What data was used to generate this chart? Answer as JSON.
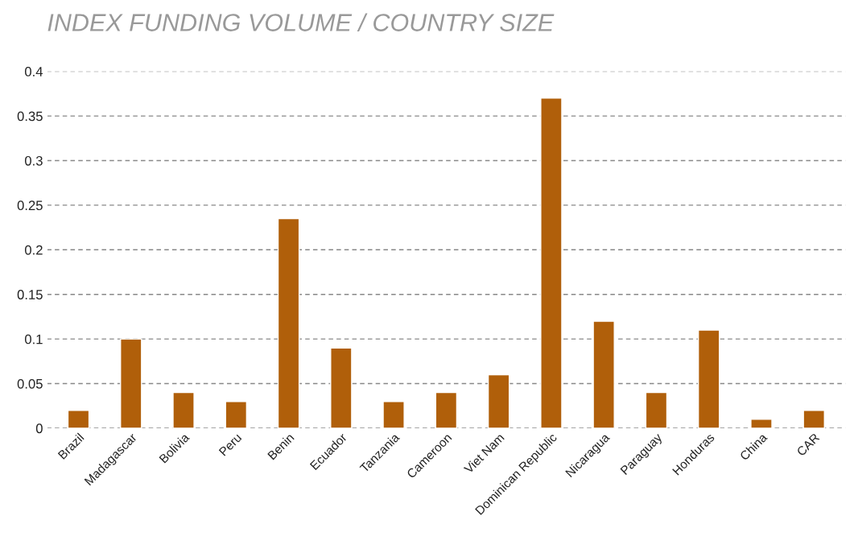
{
  "chart_data": {
    "type": "bar",
    "title": "INDEX FUNDING VOLUME / COUNTRY SIZE",
    "categories": [
      "Brazil",
      "Madagascar",
      "Bolivia",
      "Peru",
      "Benin",
      "Ecuador",
      "Tanzania",
      "Cameroon",
      "Viet Nam",
      "Dominican Republic",
      "Nicaragua",
      "Paraguay",
      "Honduras",
      "China",
      "CAR"
    ],
    "values": [
      0.02,
      0.1,
      0.04,
      0.03,
      0.235,
      0.09,
      0.03,
      0.04,
      0.06,
      0.37,
      0.12,
      0.04,
      0.11,
      0.01,
      0.02
    ],
    "color": "#b05f0a",
    "ylim": [
      0,
      0.4
    ],
    "yticks": [
      0,
      0.05,
      0.1,
      0.15,
      0.2,
      0.25,
      0.3,
      0.35,
      0.4
    ],
    "grid": "y"
  }
}
